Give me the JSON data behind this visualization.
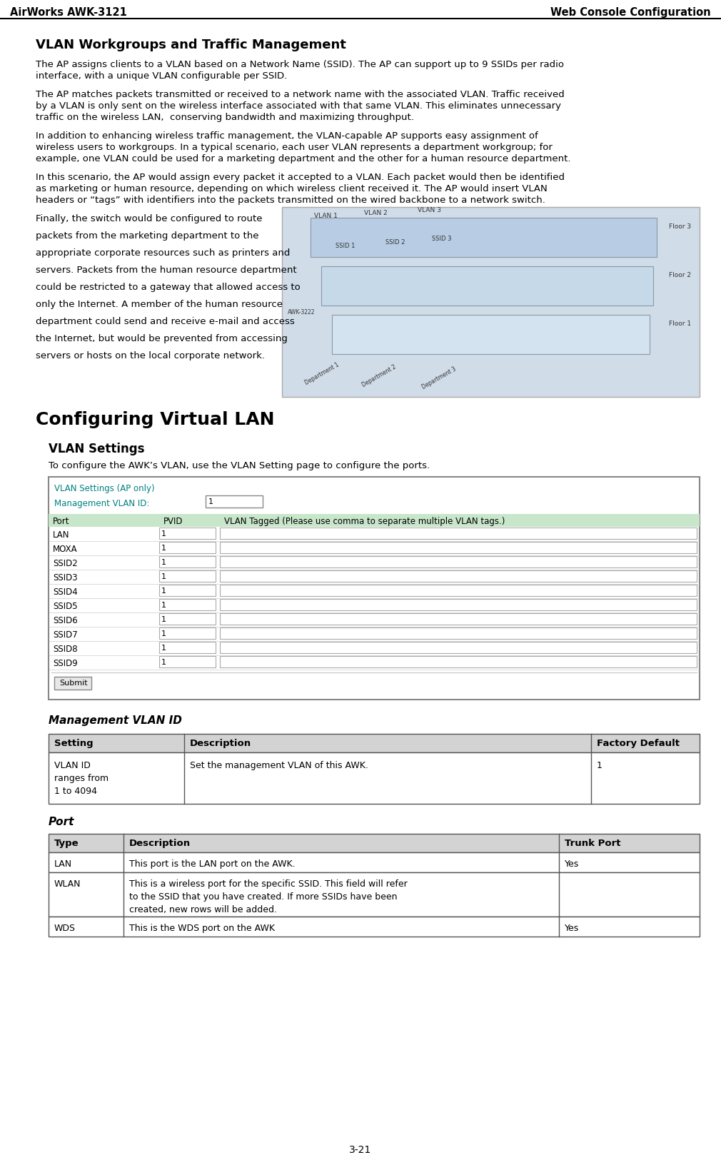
{
  "header_left": "AirWorks AWK-3121",
  "header_right": "Web Console Configuration",
  "section1_title": "VLAN Workgroups and Traffic Management",
  "para1": "The AP assigns clients to a VLAN based on a Network Name (SSID). The AP can support up to 9 SSIDs per radio\ninterface, with a unique VLAN configurable per SSID.",
  "para2": "The AP matches packets transmitted or received to a network name with the associated VLAN. Traffic received\nby a VLAN is only sent on the wireless interface associated with that same VLAN. This eliminates unnecessary\ntraffic on the wireless LAN,  conserving bandwidth and maximizing throughput.",
  "para3": "In addition to enhancing wireless traffic management, the VLAN-capable AP supports easy assignment of\nwireless users to workgroups. In a typical scenario, each user VLAN represents a department workgroup; for\nexample, one VLAN could be used for a marketing department and the other for a human resource department.",
  "para4": "In this scenario, the AP would assign every packet it accepted to a VLAN. Each packet would then be identified\nas marketing or human resource, depending on which wireless client received it. The AP would insert VLAN\nheaders or “tags” with identifiers into the packets transmitted on the wired backbone to a network switch.",
  "para5_lines": [
    "Finally, the switch would be configured to route",
    "packets from the marketing department to the",
    "appropriate corporate resources such as printers and",
    "servers. Packets from the human resource department",
    "could be restricted to a gateway that allowed access to",
    "only the Internet. A member of the human resource",
    "department could send and receive e-mail and access",
    "the Internet, but would be prevented from accessing",
    "servers or hosts on the local corporate network."
  ],
  "section2_title": "Configuring Virtual LAN",
  "section2_sub": "VLAN Settings",
  "section2_intro": "To configure the AWK’s VLAN, use the VLAN Setting page to configure the ports.",
  "vlan_box_title": "VLAN Settings (AP only)",
  "mgmt_vlan_label": "Management VLAN ID:",
  "mgmt_vlan_value": "1",
  "table1_header": [
    "Port",
    "PVID",
    "VLAN Tagged (Please use comma to separate multiple VLAN tags.)"
  ],
  "table1_rows": [
    "LAN",
    "MOXA",
    "SSID2",
    "SSID3",
    "SSID4",
    "SSID5",
    "SSID6",
    "SSID7",
    "SSID8",
    "SSID9"
  ],
  "submit_label": "Submit",
  "mgmt_section_title": "Management VLAN ID",
  "mgmt_table_header": [
    "Setting",
    "Description",
    "Factory Default"
  ],
  "mgmt_table_row": [
    "VLAN ID\nranges from\n1 to 4094",
    "Set the management VLAN of this AWK.",
    "1"
  ],
  "port_section_title": "Port",
  "port_table_header": [
    "Type",
    "Description",
    "Trunk Port"
  ],
  "port_table_rows": [
    [
      "LAN",
      "This port is the LAN port on the AWK.",
      "Yes"
    ],
    [
      "WLAN",
      "This is a wireless port for the specific SSID. This field will refer\nto the SSID that you have created. If more SSIDs have been\ncreated, new rows will be added.",
      ""
    ],
    [
      "WDS",
      "This is the WDS port on the AWK",
      "Yes"
    ]
  ],
  "page_number": "3-21",
  "bg_color": "#ffffff",
  "header_line_color": "#000000",
  "table_header_bg": "#c8e6c9",
  "table_border_color": "#555555",
  "vlan_box_border": "#888888",
  "vlan_title_color": "#008080",
  "mgmt_label_color": "#008080",
  "submit_btn_bg": "#e8e8e8",
  "submit_btn_border": "#888888",
  "input_border": "#aaaaaa",
  "table_gray_header_bg": "#d3d3d3"
}
